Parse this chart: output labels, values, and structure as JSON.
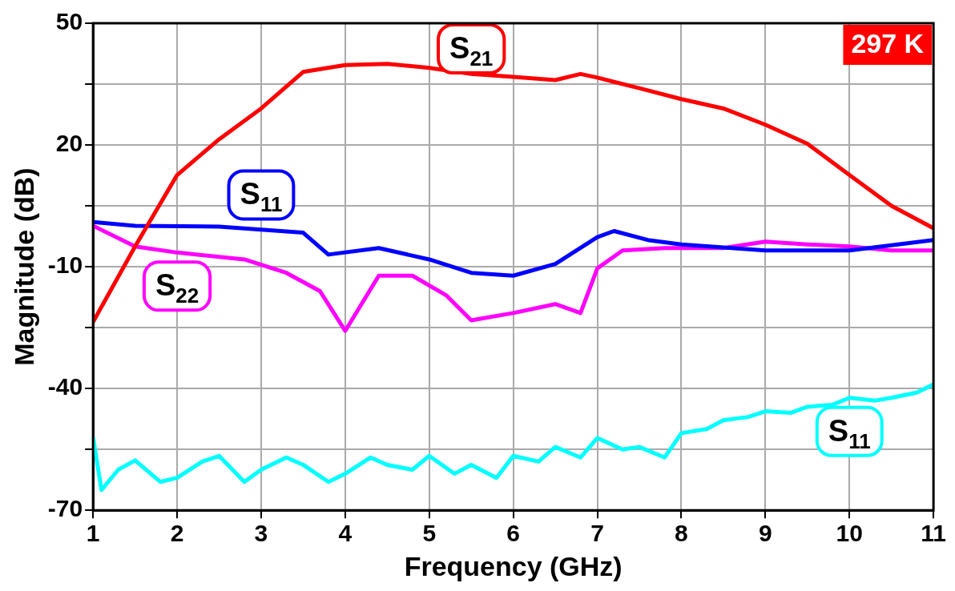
{
  "chart_data": {
    "type": "line",
    "xlabel": "Frequency (GHz)",
    "ylabel": "Magnitude (dB)",
    "xlim": [
      1,
      11
    ],
    "xticks": [
      1,
      2,
      3,
      4,
      5,
      6,
      7,
      8,
      9,
      10,
      11
    ],
    "ylim": [
      -70,
      50
    ],
    "yticks": [
      -70,
      {
        "value": -55,
        "label": null
      },
      -40,
      {
        "value": -25,
        "label": null
      },
      -10,
      {
        "value": 5,
        "label": null
      },
      20,
      {
        "value": 35,
        "label": null
      },
      50
    ],
    "grid": true,
    "legend": false,
    "marker": "none",
    "line_style": "solid",
    "series": [
      {
        "color": "#ff0000",
        "x": [
          1,
          1.5,
          2,
          2.5,
          3,
          3.5,
          4,
          4.5,
          5,
          5.5,
          6,
          6.5,
          6.8,
          7,
          7.5,
          8,
          8.5,
          9,
          9.5,
          10,
          10.5,
          11
        ],
        "values": [
          -23.6,
          -5,
          12.6,
          21.4,
          29,
          38,
          39.7,
          40,
          39,
          37.5,
          36.8,
          36,
          37.5,
          36.6,
          34,
          31.3,
          29,
          25,
          20.3,
          12.6,
          5,
          -0.5
        ]
      },
      {
        "color": "#0000ff",
        "x": [
          1,
          1.5,
          2.5,
          3.5,
          3.8,
          4.4,
          5,
          5.5,
          6,
          6.5,
          7,
          7.2,
          7.6,
          8,
          9,
          10,
          11
        ],
        "values": [
          1,
          0.1,
          -0.1,
          -1.6,
          -7,
          -5.4,
          -8.2,
          -11.5,
          -12.2,
          -9.3,
          -2.7,
          -1.2,
          -3.4,
          -4.5,
          -6,
          -6,
          -3.4
        ]
      },
      {
        "color": "#ff00ff",
        "x": [
          1,
          1.5,
          2,
          2.8,
          3.3,
          3.7,
          4,
          4.4,
          4.8,
          5.2,
          5.5,
          6,
          6.5,
          6.8,
          7,
          7.3,
          7.8,
          8.5,
          9,
          9.5,
          10,
          10.5,
          11
        ],
        "values": [
          0.1,
          -5,
          -6.5,
          -8.2,
          -11.5,
          -16,
          -25.8,
          -12.2,
          -12.2,
          -17,
          -23.2,
          -21.4,
          -19.2,
          -21.4,
          -10.4,
          -6,
          -5.4,
          -5.4,
          -3.8,
          -4.5,
          -5,
          -6,
          -6
        ]
      },
      {
        "color": "#00ffff",
        "x": [
          1,
          1.1,
          1.3,
          1.5,
          1.8,
          2,
          2.3,
          2.5,
          2.8,
          3,
          3.3,
          3.5,
          3.8,
          4,
          4.3,
          4.5,
          4.8,
          5,
          5.3,
          5.5,
          5.8,
          6,
          6.3,
          6.5,
          6.8,
          7,
          7.3,
          7.5,
          7.8,
          8,
          8.3,
          8.5,
          8.8,
          9,
          9.3,
          9.5,
          9.8,
          10,
          10.3,
          10.5,
          10.8,
          11
        ],
        "values": [
          -52,
          -65,
          -60,
          -57.7,
          -63,
          -62,
          -58,
          -56.6,
          -63,
          -60,
          -57,
          -58.8,
          -63,
          -61,
          -57,
          -58.8,
          -60,
          -56.6,
          -61,
          -58.8,
          -62,
          -56.6,
          -58,
          -54.4,
          -57,
          -52.2,
          -55,
          -54.4,
          -57,
          -51,
          -50,
          -47.8,
          -47,
          -45.6,
          -46,
          -44.5,
          -44,
          -42.3,
          -43,
          -42.3,
          -41,
          -39
        ]
      }
    ],
    "annotations": [
      {
        "text": "S$_{21}$",
        "x": 5.5,
        "y": 37.5
      },
      {
        "text": "S$_{11}$",
        "x": 3,
        "y": -0.6
      },
      {
        "text": "S$_{22}$",
        "x": 2,
        "y": -6.5
      },
      {
        "text": "S$_{11}$",
        "x": 10,
        "y": -42.3
      },
      "297 K"
    ]
  }
}
